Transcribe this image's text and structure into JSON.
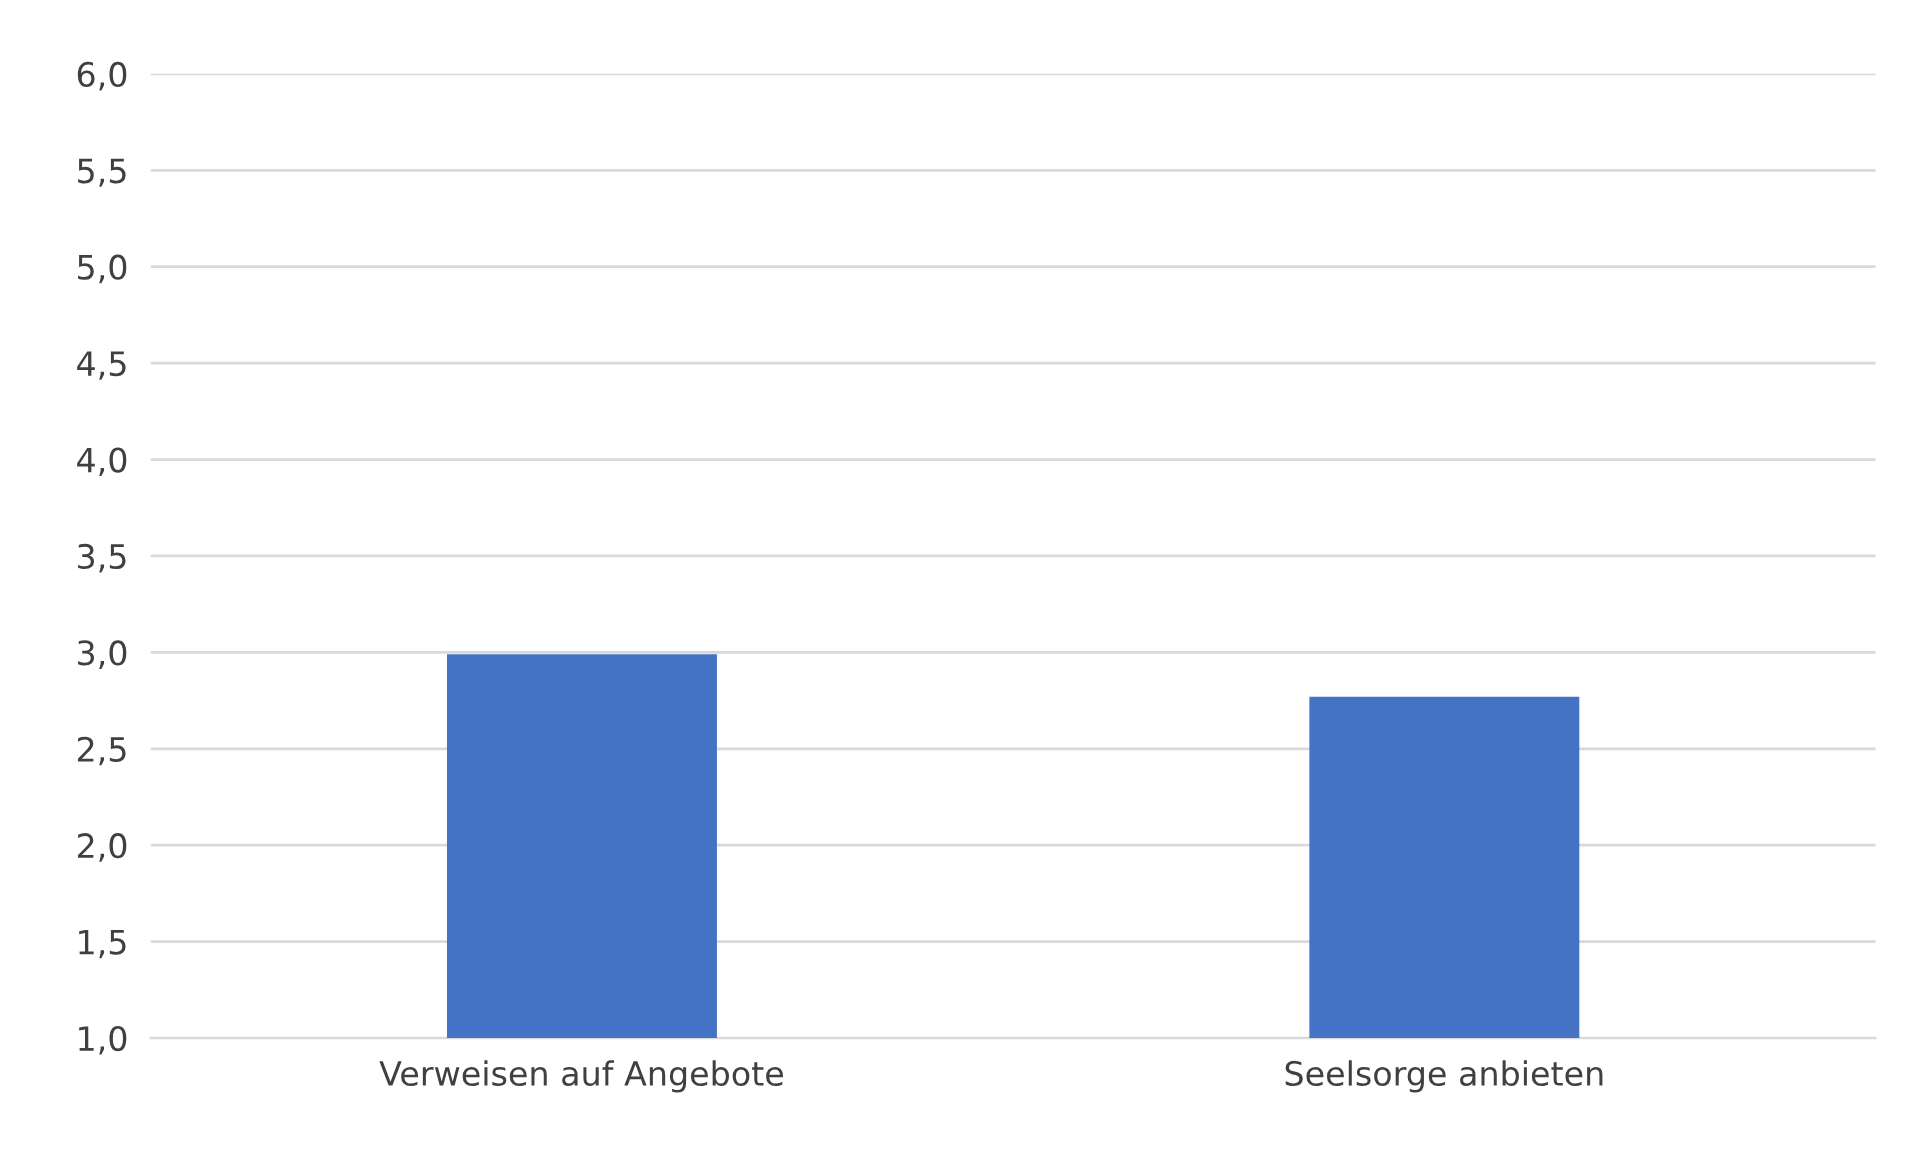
{
  "chart_data": {
    "type": "bar",
    "categories": [
      "Verweisen auf Angebote",
      "Seelsorge anbieten"
    ],
    "values": [
      2.99,
      2.77
    ],
    "color": "#4472c4",
    "ylim": [
      1.0,
      6.0
    ],
    "yticks": [
      {
        "value": 1.0,
        "label": "1,0"
      },
      {
        "value": 1.5,
        "label": "1,5"
      },
      {
        "value": 2.0,
        "label": "2,0"
      },
      {
        "value": 2.5,
        "label": "2,5"
      },
      {
        "value": 3.0,
        "label": "3,0"
      },
      {
        "value": 3.5,
        "label": "3,5"
      },
      {
        "value": 4.0,
        "label": "4,0"
      },
      {
        "value": 4.5,
        "label": "4,5"
      },
      {
        "value": 5.0,
        "label": "5,0"
      },
      {
        "value": 5.5,
        "label": "5,5"
      },
      {
        "value": 6.0,
        "label": "6,0"
      }
    ],
    "grid": "y"
  }
}
